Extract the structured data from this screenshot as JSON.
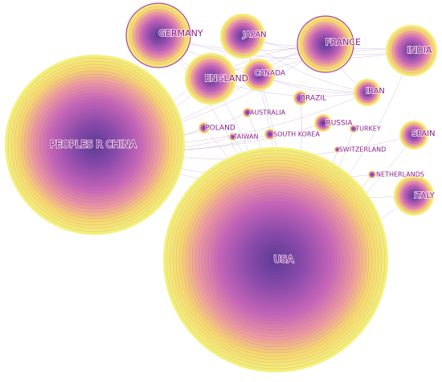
{
  "nodes": [
    {
      "label": "PEOPLES R CHINA"
    },
    {
      "label": "USA"
    },
    {
      "label": "GERMANY"
    },
    {
      "label": "JAPAN"
    },
    {
      "label": "FRANCE"
    },
    {
      "label": "INDIA"
    },
    {
      "label": "ENGLAND"
    },
    {
      "label": "CANADA"
    },
    {
      "label": "IRAN"
    },
    {
      "label": "BRAZIL"
    },
    {
      "label": "AUSTRALIA"
    },
    {
      "label": "POLAND"
    },
    {
      "label": "RUSSIA"
    },
    {
      "label": "TURKEY"
    },
    {
      "label": "SPAIN"
    },
    {
      "label": "TAIWAN"
    },
    {
      "label": "SOUTH KOREA"
    },
    {
      "label": "SWITZERLAND"
    },
    {
      "label": "NETHERLANDS"
    },
    {
      "label": "ITALY"
    }
  ]
}
